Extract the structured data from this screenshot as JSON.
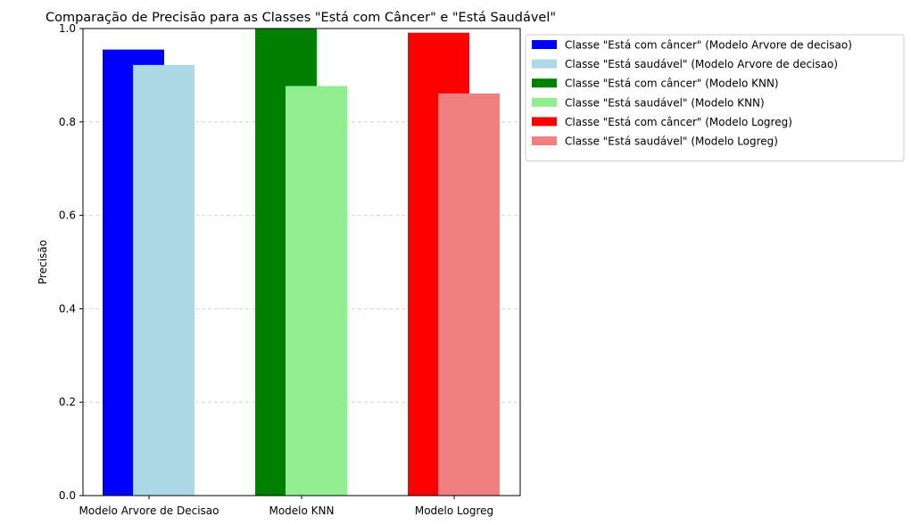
{
  "chart_data": {
    "type": "bar",
    "title": "Comparação de Precisão para as Classes \"Está com Câncer\" e \"Está Saudável\"",
    "xlabel": "",
    "ylabel": "Precisão",
    "ylim": [
      0,
      1.0
    ],
    "yticks": [
      "0.0",
      "0.2",
      "0.4",
      "0.6",
      "0.8",
      "1.0"
    ],
    "ytick_values": [
      0,
      0.2,
      0.4,
      0.6,
      0.8,
      1.0
    ],
    "grid": "y-dashed",
    "legend_position": "outside-right-top",
    "categories": [
      "Modelo Arvore de Decisao",
      "Modelo KNN",
      "Modelo Logreg"
    ],
    "series": [
      {
        "name": "Classe \"Está com câncer\" (Modelo Arvore de decisao)",
        "color": "#0000ff",
        "category": 0,
        "offset": "left",
        "value": 0.955
      },
      {
        "name": "Classe \"Está saudável\" (Modelo Arvore de decisao)",
        "color": "#add8e6",
        "category": 0,
        "offset": "right",
        "value": 0.922
      },
      {
        "name": "Classe \"Está com câncer\" (Modelo KNN)",
        "color": "#008000",
        "category": 1,
        "offset": "left",
        "value": 1.0
      },
      {
        "name": "Classe \"Está saudável\" (Modelo KNN)",
        "color": "#90ee90",
        "category": 1,
        "offset": "right",
        "value": 0.877
      },
      {
        "name": "Classe \"Está com câncer\" (Modelo Logreg)",
        "color": "#ff0000",
        "category": 2,
        "offset": "left",
        "value": 0.991
      },
      {
        "name": "Classe \"Está saudável\" (Modelo Logreg)",
        "color": "#f08080",
        "category": 2,
        "offset": "right",
        "value": 0.861
      }
    ]
  }
}
